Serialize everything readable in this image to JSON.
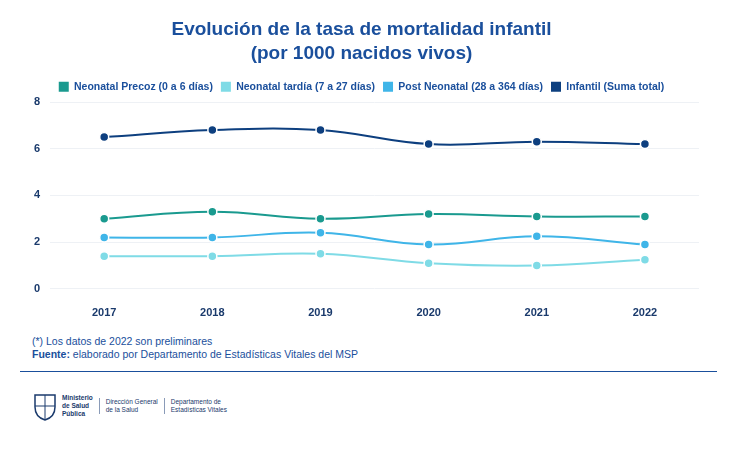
{
  "chart_data": {
    "type": "line",
    "title": "Evolución de la tasa de mortalidad infantil",
    "subtitle": "(por 1000 nacidos vivos)",
    "categories": [
      "2017",
      "2018",
      "2019",
      "2020",
      "2021",
      "2022"
    ],
    "series": [
      {
        "name": "Neonatal Precoz (0 a 6 días)",
        "color": "#1a9a8f",
        "values": [
          3.0,
          3.3,
          3.0,
          3.2,
          3.1,
          3.1
        ]
      },
      {
        "name": "Neonatal tardía (7 a 27 días)",
        "color": "#7fdbe6",
        "values": [
          1.4,
          1.4,
          1.5,
          1.1,
          1.0,
          1.25
        ]
      },
      {
        "name": "Post Neonatal (28 a 364 días)",
        "color": "#3fb5e8",
        "values": [
          2.2,
          2.2,
          2.4,
          1.9,
          2.25,
          1.9
        ]
      },
      {
        "name": "Infantil (Suma total)",
        "color": "#0d3f7f",
        "values": [
          6.5,
          6.8,
          6.8,
          6.2,
          6.3,
          6.2
        ]
      }
    ],
    "ylim": [
      0,
      8
    ],
    "yticks": [
      0,
      2,
      4,
      6,
      8
    ],
    "grid": true,
    "legend": "top",
    "marker": "circle",
    "line_style": "solid"
  },
  "footnote": "(*) Los datos de 2022 son preliminares",
  "source_label": "Fuente:",
  "source_text": "elaborado por Departamento de Estadísticas Vitales del MSP",
  "logo": [
    [
      "Ministerio",
      "de Salud",
      "Pública"
    ],
    [
      "Dirección General",
      "de la Salud"
    ],
    [
      "Departamento de",
      "Estadísticas Vitales"
    ]
  ]
}
